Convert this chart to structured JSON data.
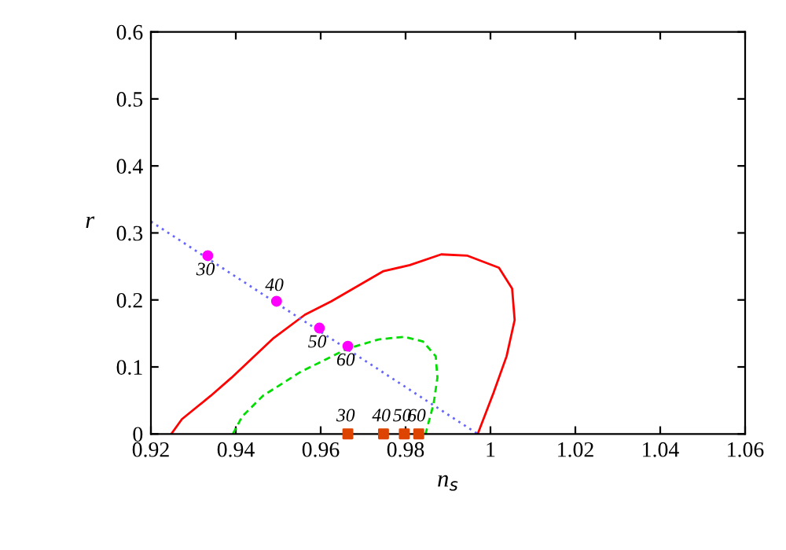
{
  "chart_data": {
    "type": "line",
    "xlabel": "n$_{s}$",
    "ylabel": "r",
    "xlim": [
      0.92,
      1.06
    ],
    "xticks": [
      0.92,
      0.94,
      0.96,
      0.98,
      1,
      1.02,
      1.04,
      1.06
    ],
    "ylim": [
      0,
      0.6
    ],
    "yticks": [
      0,
      0.1,
      0.2,
      0.3,
      0.4,
      0.5,
      0.6
    ],
    "grid": false,
    "series": [
      {
        "color": "#ff0000",
        "line_style": "solid",
        "x": [
          0.9248,
          0.9273,
          0.9341,
          0.939,
          0.9489,
          0.9563,
          0.9625,
          0.9748,
          0.981,
          0.9884,
          0.9946,
          1.002,
          1.0051,
          1.0057,
          1.0038,
          1.0007,
          0.997
        ],
        "values": [
          0,
          0.022,
          0.057,
          0.084,
          0.143,
          0.178,
          0.198,
          0.243,
          0.252,
          0.268,
          0.266,
          0.248,
          0.217,
          0.17,
          0.116,
          0.061,
          0
        ]
      },
      {
        "color": "#00dd00",
        "line_style": "dashed",
        "x": [
          0.9393,
          0.9415,
          0.9464,
          0.9551,
          0.9662,
          0.9736,
          0.9797,
          0.9841,
          0.9871,
          0.9875,
          0.9866,
          0.9847
        ],
        "values": [
          0,
          0.026,
          0.057,
          0.092,
          0.127,
          0.141,
          0.145,
          0.138,
          0.116,
          0.084,
          0.045,
          0
        ]
      },
      {
        "color": "#6666ff",
        "line_style": "dotted",
        "x": [
          0.92,
          0.997
        ],
        "values": [
          0.317,
          0
        ]
      },
      {
        "type": "scatter",
        "color": "#ff00ff",
        "marker": "circle",
        "x": [
          0.9334,
          0.9496,
          0.9597,
          0.9664
        ],
        "values": [
          0.266,
          0.198,
          0.158,
          0.131
        ]
      },
      {
        "type": "scatter",
        "color": "#dd4400",
        "marker": "square",
        "x": [
          0.9664,
          0.9748,
          0.9797,
          0.9831
        ],
        "values": [
          0,
          0,
          0,
          0
        ]
      }
    ],
    "annotations": [
      {
        "text": "30",
        "x": 0.9334,
        "y": 0.266
      },
      {
        "text": "40",
        "x": 0.9496,
        "y": 0.198
      },
      {
        "text": "50",
        "x": 0.9597,
        "y": 0.158
      },
      {
        "text": "60",
        "x": 0.9664,
        "y": 0.131
      },
      {
        "text": "30",
        "x": 0.9664,
        "y": 0
      },
      {
        "text": "40",
        "x": 0.9748,
        "y": 0
      },
      {
        "text": "50",
        "x": 0.9797,
        "y": 0
      },
      {
        "text": "60",
        "x": 0.9831,
        "y": 0
      }
    ]
  }
}
